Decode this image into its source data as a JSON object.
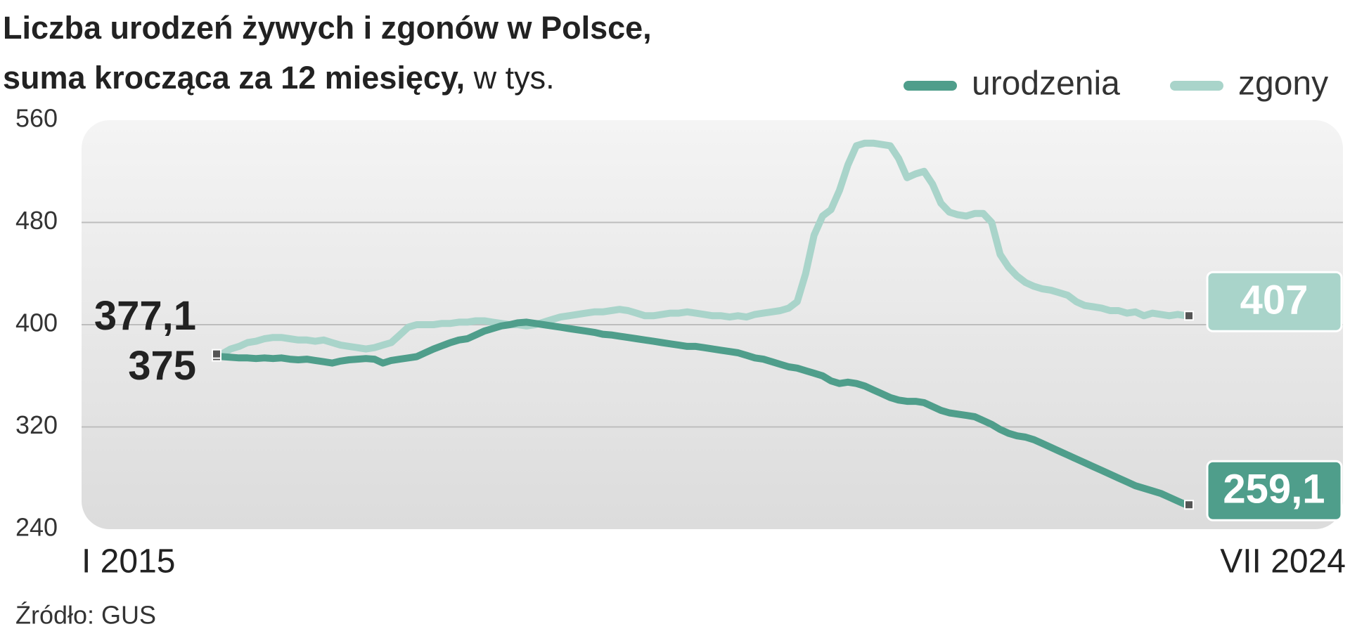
{
  "chart_data": {
    "type": "line",
    "title": "Liczba urodzeń żywych i zgonów w Polsce,",
    "subtitle": "suma krocząca za 12 miesięcy,",
    "unit": "w tys.",
    "source": "Źródło: GUS",
    "categories": [
      "I 2015",
      null,
      null,
      null,
      null,
      null,
      null,
      null,
      null,
      null,
      null,
      null,
      null,
      null,
      null,
      null,
      null,
      null,
      null,
      null,
      null,
      null,
      null,
      null,
      null,
      null,
      null,
      null,
      null,
      null,
      null,
      null,
      null,
      null,
      null,
      null,
      null,
      null,
      null,
      null,
      null,
      null,
      null,
      null,
      null,
      null,
      null,
      null,
      null,
      null,
      null,
      null,
      null,
      null,
      null,
      null,
      null,
      null,
      null,
      null,
      null,
      null,
      null,
      null,
      null,
      null,
      null,
      null,
      null,
      null,
      null,
      null,
      null,
      null,
      null,
      null,
      null,
      null,
      null,
      null,
      null,
      null,
      null,
      null,
      null,
      null,
      null,
      null,
      null,
      null,
      null,
      null,
      null,
      null,
      null,
      null,
      null,
      null,
      null,
      null,
      null,
      null,
      null,
      null,
      null,
      null,
      null,
      null,
      null,
      null,
      null,
      null,
      null,
      null,
      "VII 2024"
    ],
    "series": [
      {
        "name": "urodzenia",
        "color": "#4f9e8b",
        "values": [
          375,
          374.5,
          374,
          374,
          373.5,
          374,
          373.5,
          374,
          373,
          372.5,
          373,
          372,
          371,
          370,
          371.5,
          372.5,
          373,
          373.5,
          373,
          370,
          372,
          373,
          374,
          375,
          378,
          381,
          383.5,
          386,
          388,
          389,
          392,
          395,
          397,
          399,
          400,
          401.5,
          402,
          401,
          400,
          399,
          398,
          397,
          396,
          395,
          394,
          392.5,
          392,
          391,
          390,
          389,
          388,
          387,
          386,
          385,
          384,
          383,
          383,
          382,
          381,
          380,
          379,
          378,
          376,
          374,
          373,
          371,
          369,
          367,
          366,
          364,
          362,
          360,
          356,
          354,
          355,
          354,
          352,
          349,
          346,
          343,
          341,
          340,
          340,
          339,
          336,
          333,
          331,
          330,
          329,
          328,
          325,
          322,
          318,
          315,
          313,
          312,
          310,
          307,
          304,
          301,
          298,
          295,
          292,
          289,
          286,
          283,
          280,
          277,
          274,
          272,
          270,
          268,
          265,
          262,
          259.1
        ],
        "value_labels": {
          "0": "375",
          "114": "259,1"
        }
      },
      {
        "name": "zgony",
        "color": "#a9d4ca",
        "values": [
          377.1,
          381,
          383,
          386,
          387,
          389,
          390,
          390,
          389,
          388,
          388,
          387,
          388,
          386,
          384,
          383,
          382,
          381,
          382,
          384,
          386,
          392,
          398,
          400,
          400,
          400,
          401,
          401,
          402,
          402,
          403,
          403,
          402,
          401,
          400,
          400,
          399,
          400,
          402,
          404,
          406,
          407,
          408,
          409,
          410,
          410,
          411,
          412,
          411,
          409,
          407,
          407,
          408,
          409,
          409,
          410,
          409,
          408,
          407,
          407,
          406,
          407,
          406,
          408,
          409,
          410,
          411,
          413,
          418,
          440,
          470,
          485,
          490,
          505,
          525,
          540,
          542,
          542,
          541,
          540,
          530,
          515,
          518,
          520,
          510,
          495,
          488,
          486,
          485,
          487,
          487,
          480,
          455,
          445,
          438,
          433,
          430,
          428,
          427,
          425,
          423,
          418,
          415,
          414,
          413,
          411,
          411,
          409,
          410,
          407,
          409,
          408,
          407,
          408,
          407
        ],
        "value_labels": {
          "0": "377,1",
          "114": "407"
        }
      }
    ],
    "ylim": [
      240,
      560
    ],
    "yticks": [
      240,
      320,
      400,
      480,
      560
    ],
    "grid": true,
    "legend": "top-right"
  }
}
